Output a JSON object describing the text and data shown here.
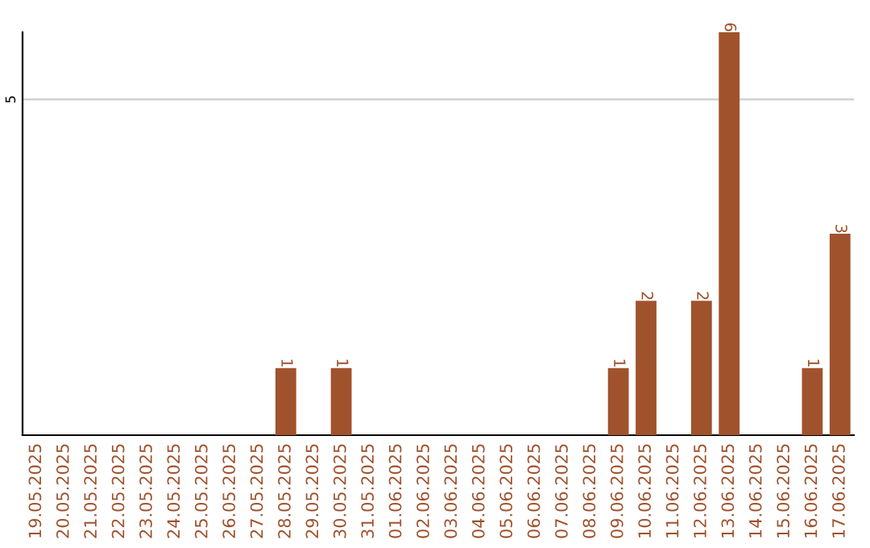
{
  "chart_data": {
    "type": "bar",
    "categories": [
      "19.05.2025",
      "20.05.2025",
      "21.05.2025",
      "22.05.2025",
      "23.05.2025",
      "24.05.2025",
      "25.05.2025",
      "26.05.2025",
      "27.05.2025",
      "28.05.2025",
      "29.05.2025",
      "30.05.2025",
      "31.05.2025",
      "01.06.2025",
      "02.06.2025",
      "03.06.2025",
      "04.06.2025",
      "05.06.2025",
      "06.06.2025",
      "07.06.2025",
      "08.06.2025",
      "09.06.2025",
      "10.06.2025",
      "11.06.2025",
      "12.06.2025",
      "13.06.2025",
      "14.06.2025",
      "15.06.2025",
      "16.06.2025",
      "17.06.2025"
    ],
    "values": [
      0,
      0,
      0,
      0,
      0,
      0,
      0,
      0,
      0,
      1,
      0,
      1,
      0,
      0,
      0,
      0,
      0,
      0,
      0,
      0,
      0,
      1,
      2,
      0,
      2,
      6,
      0,
      0,
      1,
      3
    ],
    "value_labels": [
      null,
      null,
      null,
      null,
      null,
      null,
      null,
      null,
      null,
      "1",
      null,
      "1",
      null,
      null,
      null,
      null,
      null,
      null,
      null,
      null,
      null,
      "1",
      "2",
      null,
      "2",
      "6",
      null,
      null,
      "1",
      "3"
    ],
    "color": "#a0522d",
    "ylim": [
      0,
      6
    ],
    "yticks": [
      5
    ],
    "grid": "y"
  }
}
